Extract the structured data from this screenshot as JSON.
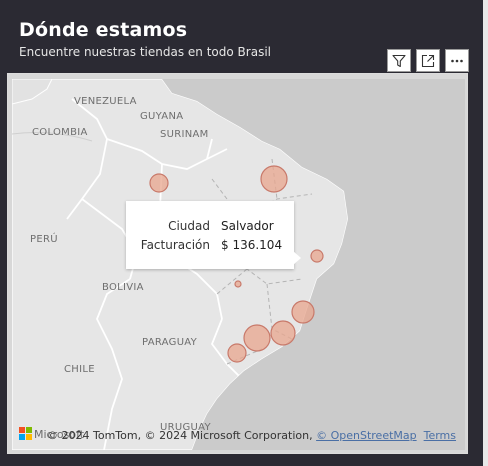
{
  "visual": {
    "title": "Dónde estamos",
    "subtitle": "Encuentre nuestras tiendas en todo Brasil"
  },
  "toolbar": {
    "filter_icon": "filter-icon",
    "focus_icon": "focus-mode-icon",
    "more_icon": "more-options-icon"
  },
  "map": {
    "labels": {
      "venezuela": "VENEZUELA",
      "guyana": "GUYANA",
      "suriname": "SURINAM",
      "colombia": "COLOMBIA",
      "peru": "PERÚ",
      "bolivia": "BOLIVIA",
      "paraguay": "PARAGUAY",
      "chile": "CHILE",
      "uruguay": "URUGUAY"
    },
    "bubble_color": "#e8a68d",
    "bubble_border": "#c8796a",
    "bubbles": [
      {
        "name": "city-manaus"
      },
      {
        "name": "city-fortaleza"
      },
      {
        "name": "city-salvador"
      },
      {
        "name": "city-brasilia"
      },
      {
        "name": "city-vitoria"
      },
      {
        "name": "city-rio"
      },
      {
        "name": "city-sao-paulo"
      },
      {
        "name": "city-curitiba"
      }
    ],
    "attribution": {
      "brand": "Microsoft",
      "prefix": "© 2024 TomTom, © 2024 Microsoft Corporation, ",
      "osm": "© OpenStreetMap",
      "terms": "Terms"
    }
  },
  "tooltip": {
    "rows": [
      {
        "label": "Ciudad",
        "value": "Salvador"
      },
      {
        "label": "Facturación",
        "value": "$ 136.104"
      }
    ]
  }
}
